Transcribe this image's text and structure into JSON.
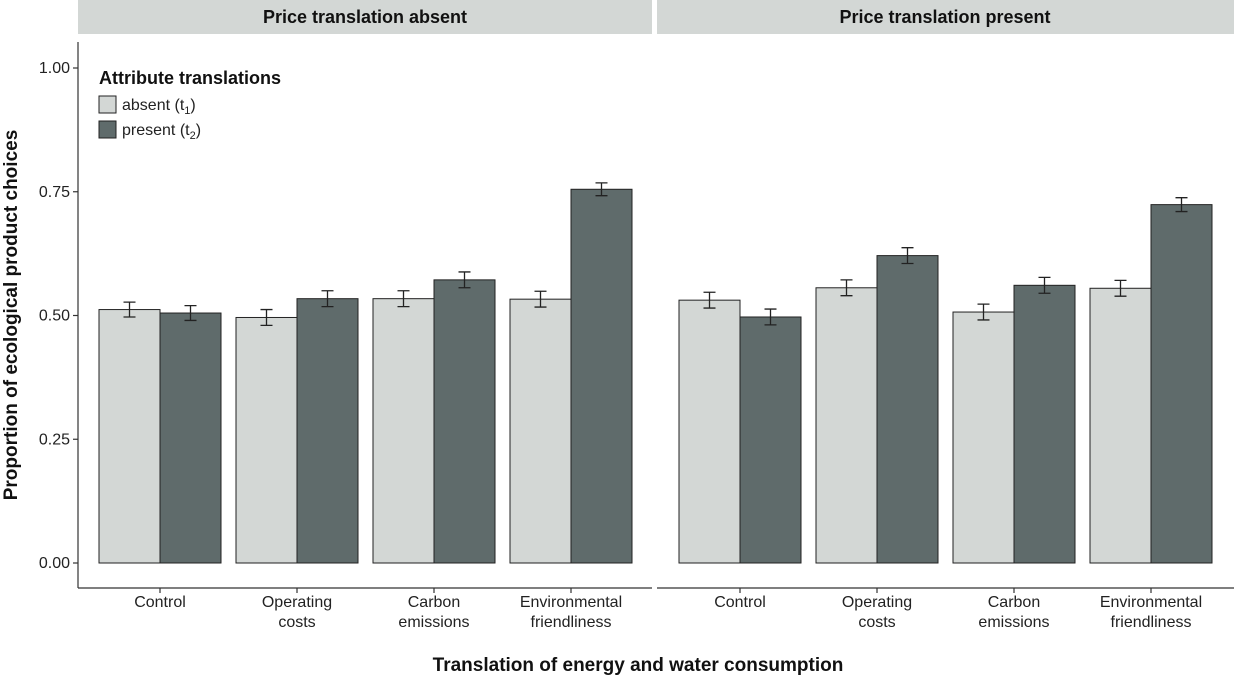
{
  "chart_data": {
    "type": "bar",
    "facets": [
      {
        "title": "Price translation absent",
        "categories": [
          "Control",
          "Operating costs",
          "Carbon emissions",
          "Environmental friendliness"
        ],
        "series": [
          {
            "name": "absent (t1)",
            "values": [
              0.512,
              0.496,
              0.534,
              0.533
            ],
            "errors": [
              0.015,
              0.016,
              0.016,
              0.016
            ]
          },
          {
            "name": "present (t2)",
            "values": [
              0.505,
              0.534,
              0.572,
              0.755
            ],
            "errors": [
              0.015,
              0.016,
              0.016,
              0.013
            ]
          }
        ]
      },
      {
        "title": "Price translation present",
        "categories": [
          "Control",
          "Operating costs",
          "Carbon emissions",
          "Environmental friendliness"
        ],
        "series": [
          {
            "name": "absent (t1)",
            "values": [
              0.531,
              0.556,
              0.507,
              0.555
            ],
            "errors": [
              0.016,
              0.016,
              0.016,
              0.016
            ]
          },
          {
            "name": "present (t2)",
            "values": [
              0.497,
              0.621,
              0.561,
              0.724
            ],
            "errors": [
              0.016,
              0.016,
              0.016,
              0.014
            ]
          }
        ]
      }
    ],
    "category_labels": [
      [
        "Control"
      ],
      [
        "Operating",
        "costs"
      ],
      [
        "Carbon",
        "emissions"
      ],
      [
        "Environmental",
        "friendliness"
      ]
    ],
    "xlabel": "Translation of energy and water consumption",
    "ylabel": "Proportion of ecological product choices",
    "ylim": [
      0,
      1.05
    ],
    "yticks": [
      0,
      0.25,
      0.5,
      0.75,
      1.0
    ],
    "ytick_labels": [
      "0.00",
      "0.25",
      "0.50",
      "0.75",
      "1.00"
    ],
    "legend": {
      "title": "Attribute translations",
      "position": "top-left",
      "entries": [
        {
          "label": "absent (t",
          "sub": "1",
          "suffix": ")"
        },
        {
          "label": "present (t",
          "sub": "2",
          "suffix": ")"
        }
      ]
    },
    "grid": false,
    "colors": {
      "absent": "#d3d7d5",
      "present": "#5f6b6b",
      "strip_background": "#d3d7d5"
    }
  }
}
